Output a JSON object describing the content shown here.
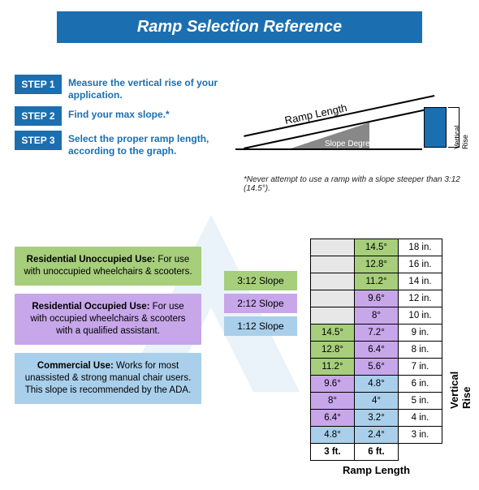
{
  "title": "Ramp Selection Reference",
  "steps": [
    {
      "badge": "STEP 1",
      "text": "Measure the vertical rise of your application."
    },
    {
      "badge": "STEP 2",
      "text": "Find your max slope.*"
    },
    {
      "badge": "STEP 3",
      "text": "Select the proper ramp length, according to the graph."
    }
  ],
  "diagram": {
    "ramp_length_label": "Ramp Length",
    "slope_degree_label": "Slope Degree",
    "vertical_rise_label": "Vertical Rise",
    "rise_block_color": "#1b6fb0",
    "angle_fill_color": "#888888"
  },
  "footnote": "*Never attempt to use a ramp with a slope steeper than 3:12 (14.5°).",
  "use_boxes": [
    {
      "title": "Residential Unoccupied Use:",
      "body": "For use with unoccupied wheelchairs & scooters.",
      "color": "#a6ce7b"
    },
    {
      "title": "Residential Occupied Use:",
      "body": "For use with occupied wheelchairs & scooters with a qualified assistant.",
      "color": "#c7a6ea"
    },
    {
      "title": "Commercial Use:",
      "body": "Works for most unassisted & strong manual chair users. This slope is recommended by the ADA.",
      "color": "#a9cfeb"
    }
  ],
  "legend": [
    {
      "label": "3:12 Slope",
      "color": "#a6ce7b"
    },
    {
      "label": "2:12 Slope",
      "color": "#c7a6ea"
    },
    {
      "label": "1:12 Slope",
      "color": "#a9cfeb"
    }
  ],
  "table": {
    "empty_color": "#e7e7e7",
    "rows": [
      [
        {
          "v": "",
          "c": "e"
        },
        {
          "v": "14.5°",
          "c": "g"
        },
        {
          "v": "18 in.",
          "c": ""
        }
      ],
      [
        {
          "v": "",
          "c": "e"
        },
        {
          "v": "12.8°",
          "c": "g"
        },
        {
          "v": "16 in.",
          "c": ""
        }
      ],
      [
        {
          "v": "",
          "c": "e"
        },
        {
          "v": "11.2°",
          "c": "g"
        },
        {
          "v": "14 in.",
          "c": ""
        }
      ],
      [
        {
          "v": "",
          "c": "e"
        },
        {
          "v": "9.6°",
          "c": "p"
        },
        {
          "v": "12 in.",
          "c": ""
        }
      ],
      [
        {
          "v": "",
          "c": "e"
        },
        {
          "v": "8°",
          "c": "p"
        },
        {
          "v": "10 in.",
          "c": ""
        }
      ],
      [
        {
          "v": "14.5°",
          "c": "g"
        },
        {
          "v": "7.2°",
          "c": "p"
        },
        {
          "v": "9 in.",
          "c": ""
        }
      ],
      [
        {
          "v": "12.8°",
          "c": "g"
        },
        {
          "v": "6.4°",
          "c": "p"
        },
        {
          "v": "8 in.",
          "c": ""
        }
      ],
      [
        {
          "v": "11.2°",
          "c": "g"
        },
        {
          "v": "5.6°",
          "c": "p"
        },
        {
          "v": "7 in.",
          "c": ""
        }
      ],
      [
        {
          "v": "9.6°",
          "c": "p"
        },
        {
          "v": "4.8°",
          "c": "b"
        },
        {
          "v": "6 in.",
          "c": ""
        }
      ],
      [
        {
          "v": "8°",
          "c": "p"
        },
        {
          "v": "4°",
          "c": "b"
        },
        {
          "v": "5 in.",
          "c": ""
        }
      ],
      [
        {
          "v": "6.4°",
          "c": "p"
        },
        {
          "v": "3.2°",
          "c": "b"
        },
        {
          "v": "4 in.",
          "c": ""
        }
      ],
      [
        {
          "v": "4.8°",
          "c": "b"
        },
        {
          "v": "2.4°",
          "c": "b"
        },
        {
          "v": "3 in.",
          "c": ""
        }
      ]
    ],
    "x_headers": [
      "3 ft.",
      "6 ft."
    ],
    "x_label": "Ramp Length",
    "y_label": "Vertical Rise"
  },
  "colors": {
    "brand": "#1b6fb0",
    "green": "#a6ce7b",
    "purple": "#c7a6ea",
    "blue": "#a9cfeb",
    "grey": "#e7e7e7"
  }
}
